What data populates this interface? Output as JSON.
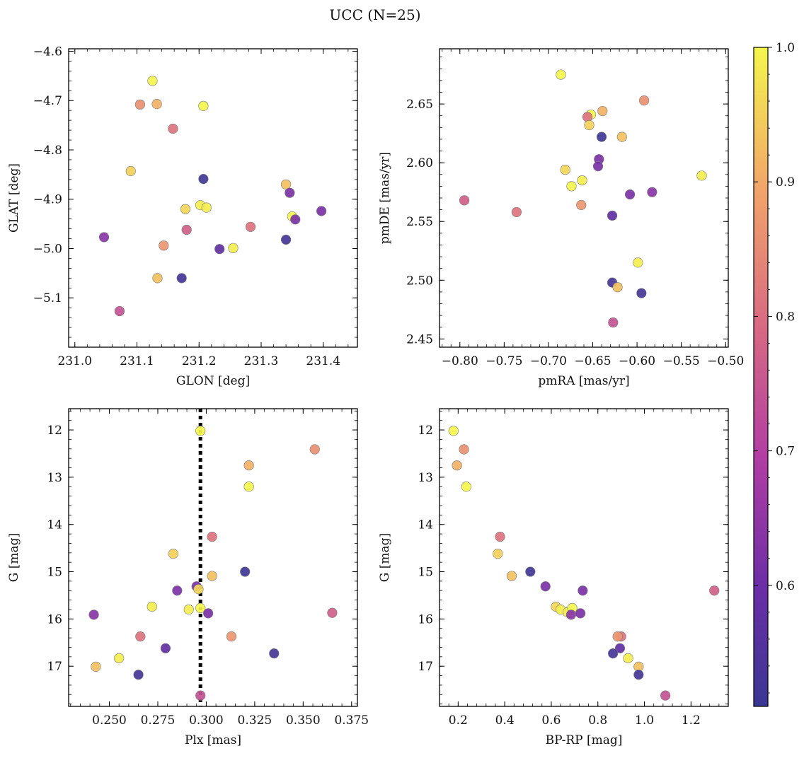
{
  "title": "UCC (N=25)",
  "colorbar": {
    "ticks": [
      "1.0",
      "0.9",
      "0.8",
      "0.7",
      "0.6"
    ],
    "tick_values": [
      1.0,
      0.9,
      0.8,
      0.7,
      0.6
    ],
    "range": [
      0.51,
      1.0
    ],
    "colormap": "plasma"
  },
  "chart_data": [
    {
      "type": "scatter",
      "xlabel": "GLON [deg]",
      "ylabel": "GLAT [deg]",
      "xlim": [
        230.99,
        231.455
      ],
      "ylim": [
        -5.2,
        -4.595
      ],
      "xticks": [
        231.0,
        231.1,
        231.2,
        231.3,
        231.4
      ],
      "xtick_labels": [
        "231.0",
        "231.1",
        "231.2",
        "231.3",
        "231.4"
      ],
      "yticks": [
        -4.6,
        -4.7,
        -4.8,
        -4.9,
        -5.0,
        -5.1
      ],
      "ytick_labels": [
        "−4.6",
        "−4.7",
        "−4.8",
        "−4.9",
        "−5.0",
        "−5.1"
      ],
      "x": [
        231.125,
        231.105,
        231.132,
        231.207,
        231.158,
        231.09,
        231.207,
        231.34,
        231.346,
        231.397,
        231.178,
        231.202,
        231.212,
        231.35,
        231.355,
        231.047,
        231.18,
        231.283,
        231.143,
        231.233,
        231.255,
        231.34,
        231.133,
        231.172,
        231.072
      ],
      "y": [
        -4.66,
        -4.708,
        -4.707,
        -4.711,
        -4.757,
        -4.843,
        -4.859,
        -4.87,
        -4.887,
        -4.924,
        -4.92,
        -4.912,
        -4.917,
        -4.935,
        -4.941,
        -4.977,
        -4.962,
        -4.956,
        -4.994,
        -5.001,
        -4.999,
        -4.982,
        -5.06,
        -5.06,
        -5.127
      ]
    },
    {
      "type": "scatter",
      "xlabel": "pmRA [mas/yr]",
      "ylabel": "pmDE [mas/yr]",
      "xlim": [
        -0.823,
        -0.497
      ],
      "ylim": [
        2.443,
        2.697
      ],
      "xticks": [
        -0.8,
        -0.75,
        -0.7,
        -0.65,
        -0.6,
        -0.55,
        -0.5
      ],
      "xtick_labels": [
        "−0.80",
        "−0.75",
        "−0.70",
        "−0.65",
        "−0.60",
        "−0.55",
        "−0.50"
      ],
      "yticks": [
        2.65,
        2.6,
        2.55,
        2.5,
        2.45
      ],
      "ytick_labels": [
        "2.65",
        "2.60",
        "2.55",
        "2.50",
        "2.45"
      ],
      "x": [
        -0.686,
        -0.592,
        -0.639,
        -0.652,
        -0.656,
        -0.654,
        -0.64,
        -0.617,
        -0.643,
        -0.644,
        -0.681,
        -0.662,
        -0.527,
        -0.674,
        -0.608,
        -0.583,
        -0.795,
        -0.736,
        -0.663,
        -0.628,
        -0.599,
        -0.628,
        -0.622,
        -0.595,
        -0.627
      ],
      "y": [
        2.675,
        2.653,
        2.644,
        2.641,
        2.639,
        2.632,
        2.622,
        2.622,
        2.603,
        2.597,
        2.594,
        2.585,
        2.589,
        2.58,
        2.573,
        2.575,
        2.568,
        2.558,
        2.564,
        2.555,
        2.515,
        2.498,
        2.494,
        2.489,
        2.464
      ]
    },
    {
      "type": "scatter",
      "xlabel": "Plx [mas]",
      "ylabel": "G [mag]",
      "xlim": [
        0.229,
        0.378
      ],
      "ylim": [
        17.85,
        11.55
      ],
      "xticks": [
        0.25,
        0.275,
        0.3,
        0.325,
        0.35,
        0.375
      ],
      "xtick_labels": [
        "0.250",
        "0.275",
        "0.300",
        "0.325",
        "0.350",
        "0.375"
      ],
      "yticks": [
        12,
        13,
        14,
        15,
        16,
        17
      ],
      "ytick_labels": [
        "12",
        "13",
        "14",
        "15",
        "16",
        "17"
      ],
      "vline": 0.297,
      "x": [
        0.297,
        0.356,
        0.322,
        0.322,
        0.303,
        0.283,
        0.32,
        0.303,
        0.285,
        0.295,
        0.296,
        0.272,
        0.291,
        0.297,
        0.301,
        0.242,
        0.365,
        0.266,
        0.313,
        0.279,
        0.255,
        0.335,
        0.243,
        0.265,
        0.297
      ],
      "y": [
        12.02,
        12.41,
        12.75,
        13.2,
        14.26,
        14.62,
        15.0,
        15.09,
        15.4,
        15.31,
        15.37,
        15.74,
        15.8,
        15.77,
        15.88,
        15.91,
        15.87,
        16.37,
        16.37,
        16.62,
        16.83,
        16.73,
        17.01,
        17.18,
        17.62
      ]
    },
    {
      "type": "scatter",
      "xlabel": "BP-RP [mag]",
      "ylabel": "G [mag]",
      "xlim": [
        0.12,
        1.36
      ],
      "ylim": [
        17.85,
        11.55
      ],
      "xticks": [
        0.2,
        0.4,
        0.6,
        0.8,
        1.0,
        1.2
      ],
      "xtick_labels": [
        "0.2",
        "0.4",
        "0.6",
        "0.8",
        "1.0",
        "1.2"
      ],
      "yticks": [
        12,
        13,
        14,
        15,
        16,
        17
      ],
      "ytick_labels": [
        "12",
        "13",
        "14",
        "15",
        "16",
        "17"
      ],
      "x": [
        0.18,
        0.225,
        0.195,
        0.235,
        0.38,
        0.37,
        0.51,
        0.43,
        0.735,
        0.575,
        0.62,
        0.64,
        0.67,
        0.69,
        0.725,
        0.685,
        1.3,
        0.9,
        0.885,
        0.895,
        0.93,
        0.865,
        0.975,
        0.975,
        1.09
      ],
      "y": [
        12.02,
        12.41,
        12.75,
        13.2,
        14.26,
        14.62,
        15.0,
        15.09,
        15.4,
        15.31,
        15.74,
        15.8,
        15.86,
        15.77,
        15.88,
        15.91,
        15.4,
        16.37,
        16.37,
        16.62,
        16.83,
        16.73,
        17.01,
        17.18,
        17.62
      ]
    }
  ],
  "membership_probability": [
    1.0,
    0.86,
    0.91,
    1.0,
    0.81,
    0.95,
    0.52,
    0.93,
    0.62,
    0.62,
    0.96,
    0.99,
    0.99,
    1.0,
    0.62,
    0.64,
    0.77,
    0.81,
    0.87,
    0.58,
    0.99,
    0.53,
    0.93,
    0.53,
    0.74
  ]
}
